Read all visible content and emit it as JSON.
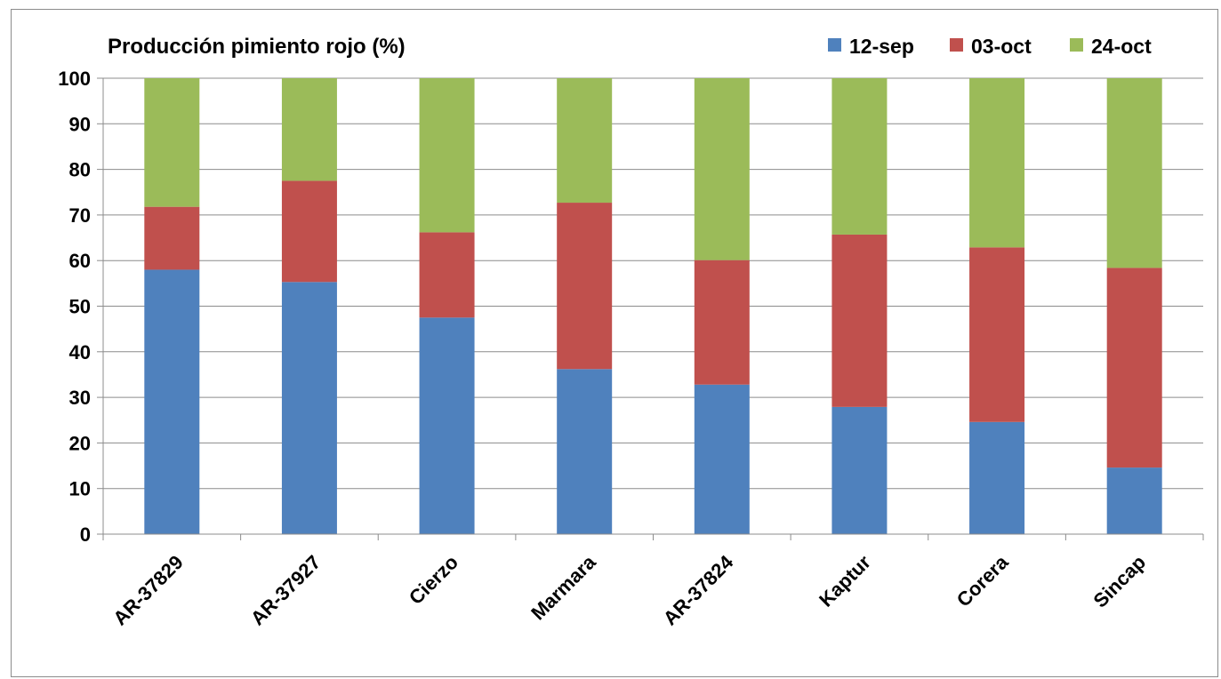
{
  "chart_data": {
    "type": "bar",
    "stacked": true,
    "title": "Producción pimiento rojo (%)",
    "xlabel": "",
    "ylabel": "",
    "ylim": [
      0,
      100
    ],
    "yticks": [
      "0",
      "10",
      "20",
      "30",
      "40",
      "50",
      "60",
      "70",
      "80",
      "90",
      "100"
    ],
    "grid": true,
    "legend_position": "top-right",
    "categories": [
      "AR-37829",
      "AR-37927",
      "Cierzo",
      "Marmara",
      "AR-37824",
      "Kaptur",
      "Corera",
      "Sincap"
    ],
    "series": [
      {
        "name": "12-sep",
        "color": "#4f81bd",
        "values": [
          58,
          55.3,
          47.5,
          36.2,
          32.8,
          27.9,
          24.6,
          14.6
        ]
      },
      {
        "name": "03-oct",
        "color": "#c0504d",
        "values": [
          13.8,
          22.2,
          18.7,
          36.5,
          27.3,
          37.8,
          38.3,
          43.8
        ]
      },
      {
        "name": "24-oct",
        "color": "#9bbb59",
        "values": [
          28.2,
          22.5,
          33.8,
          27.3,
          39.9,
          34.3,
          37.1,
          41.6
        ]
      }
    ]
  }
}
